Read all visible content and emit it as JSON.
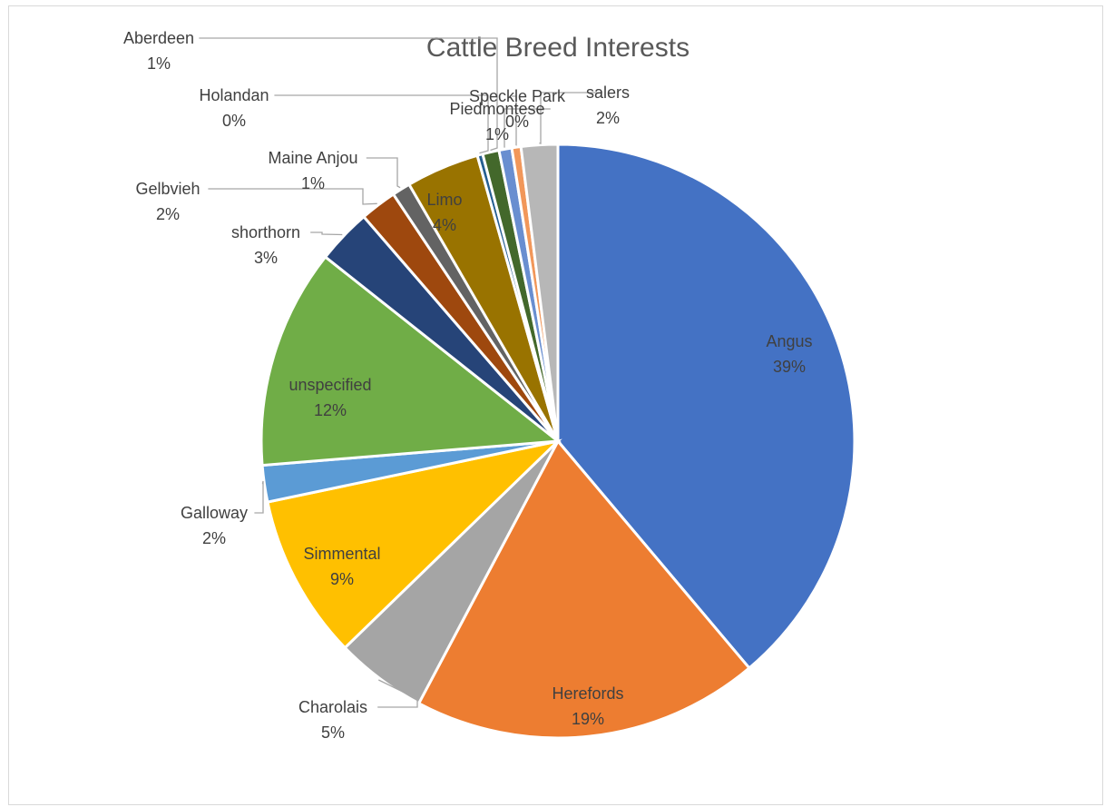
{
  "chart_data": {
    "type": "pie",
    "title": "Cattle Breed Interests",
    "slices": [
      {
        "name": "Angus",
        "value": 39,
        "pct_label": "39%",
        "color": "#4472c4"
      },
      {
        "name": "Herefords",
        "value": 19,
        "pct_label": "19%",
        "color": "#ed7d31"
      },
      {
        "name": "Charolais",
        "value": 5,
        "pct_label": "5%",
        "color": "#a5a5a5"
      },
      {
        "name": "Simmental",
        "value": 9,
        "pct_label": "9%",
        "color": "#ffc000"
      },
      {
        "name": "Galloway",
        "value": 2,
        "pct_label": "2%",
        "color": "#5b9bd5"
      },
      {
        "name": "unspecified",
        "value": 12,
        "pct_label": "12%",
        "color": "#70ad47"
      },
      {
        "name": "shorthorn",
        "value": 3,
        "pct_label": "3%",
        "color": "#264478"
      },
      {
        "name": "Gelbvieh",
        "value": 2,
        "pct_label": "2%",
        "color": "#9e480e"
      },
      {
        "name": "Maine Anjou",
        "value": 1,
        "pct_label": "1%",
        "color": "#636363"
      },
      {
        "name": "Limo",
        "value": 4,
        "pct_label": "4%",
        "color": "#997300"
      },
      {
        "name": "Holandan",
        "value": 0.3,
        "pct_label": "0%",
        "color": "#255e91"
      },
      {
        "name": "Aberdeen",
        "value": 0.9,
        "pct_label": "1%",
        "color": "#43682b"
      },
      {
        "name": "Piedmontese",
        "value": 0.7,
        "pct_label": "1%",
        "color": "#698ed0"
      },
      {
        "name": "Speckle Park",
        "value": 0.5,
        "pct_label": "0%",
        "color": "#f1975a"
      },
      {
        "name": "salers",
        "value": 2,
        "pct_label": "2%",
        "color": "#b7b7b7"
      }
    ]
  }
}
